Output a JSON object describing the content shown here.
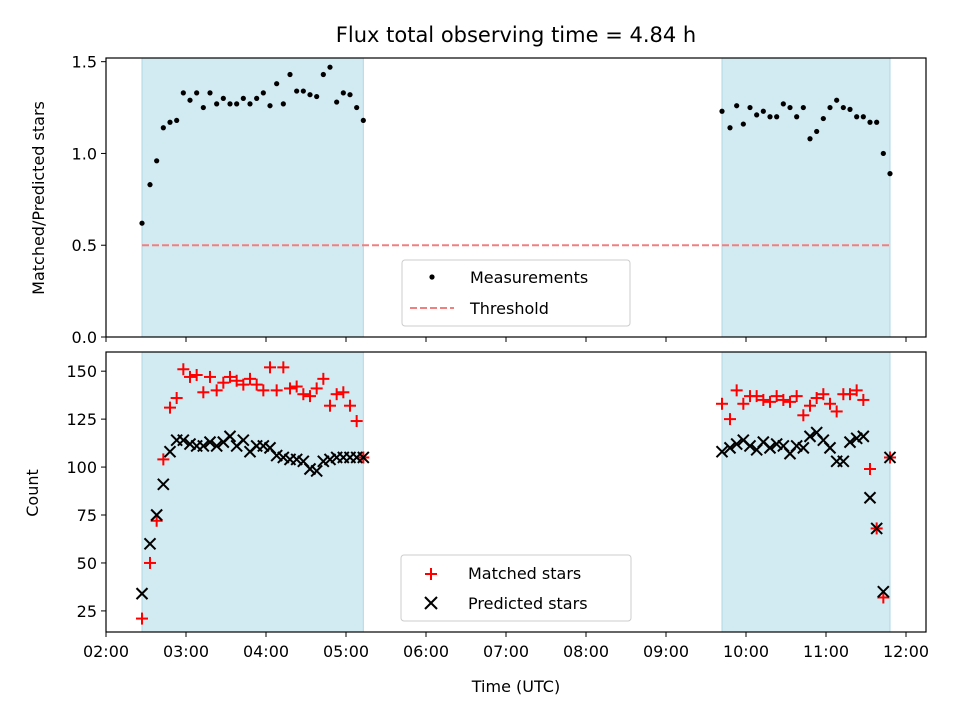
{
  "chart_data": [
    {
      "type": "scatter",
      "title": "Flux total observing time = 4.84 h",
      "xlabel": "",
      "ylabel": "Matched/Predicted stars",
      "ylim": [
        0,
        1.52
      ],
      "yticks": [
        "0.0",
        "0.5",
        "1.0",
        "1.5"
      ],
      "ytick_values": [
        0,
        0.5,
        1.0,
        1.5
      ],
      "xlim_hours": [
        2.0,
        12.25
      ],
      "xticks": [
        "02:00",
        "03:00",
        "04:00",
        "05:00",
        "06:00",
        "07:00",
        "08:00",
        "09:00",
        "10:00",
        "11:00",
        "12:00"
      ],
      "xtick_labels_shown": false,
      "shaded_spans": [
        {
          "start": "02:27",
          "end": "05:13",
          "color": "#add8e6"
        },
        {
          "start": "09:42",
          "end": "11:48",
          "color": "#add8e6"
        }
      ],
      "threshold": {
        "name": "Threshold",
        "value": 0.5,
        "x_start": "02:27",
        "x_end": "11:48",
        "color": "#f08080",
        "style": "dashed"
      },
      "series": [
        {
          "name": "Measurements",
          "color": "#000000",
          "marker": "dot",
          "x": [
            "02:27",
            "02:33",
            "02:38",
            "02:43",
            "02:48",
            "02:53",
            "02:58",
            "03:03",
            "03:08",
            "03:13",
            "03:18",
            "03:23",
            "03:28",
            "03:33",
            "03:38",
            "03:43",
            "03:48",
            "03:53",
            "03:58",
            "04:03",
            "04:08",
            "04:13",
            "04:18",
            "04:23",
            "04:28",
            "04:33",
            "04:38",
            "04:43",
            "04:48",
            "04:53",
            "04:58",
            "05:03",
            "05:08",
            "05:13",
            "09:42",
            "09:48",
            "09:53",
            "09:58",
            "10:03",
            "10:08",
            "10:13",
            "10:18",
            "10:23",
            "10:28",
            "10:33",
            "10:38",
            "10:43",
            "10:48",
            "10:53",
            "10:58",
            "11:03",
            "11:08",
            "11:13",
            "11:18",
            "11:23",
            "11:28",
            "11:33",
            "11:38",
            "11:43",
            "11:48"
          ],
          "y": [
            0.62,
            0.83,
            0.96,
            1.14,
            1.17,
            1.18,
            1.33,
            1.29,
            1.33,
            1.25,
            1.33,
            1.27,
            1.3,
            1.27,
            1.27,
            1.3,
            1.27,
            1.3,
            1.33,
            1.26,
            1.38,
            1.27,
            1.43,
            1.34,
            1.34,
            1.32,
            1.31,
            1.43,
            1.47,
            1.28,
            1.33,
            1.32,
            1.25,
            1.18,
            1.23,
            1.14,
            1.26,
            1.16,
            1.25,
            1.21,
            1.23,
            1.2,
            1.2,
            1.27,
            1.25,
            1.2,
            1.25,
            1.08,
            1.12,
            1.19,
            1.25,
            1.29,
            1.25,
            1.24,
            1.2,
            1.2,
            1.17,
            1.17,
            1.0,
            0.89
          ]
        }
      ],
      "legend": {
        "entries": [
          "Measurements",
          "Threshold"
        ],
        "placement": "lower center"
      }
    },
    {
      "type": "scatter",
      "title": "",
      "xlabel": "Time (UTC)",
      "ylabel": "Count",
      "ylim": [
        14,
        160
      ],
      "yticks": [
        "25",
        "50",
        "75",
        "100",
        "125",
        "150"
      ],
      "ytick_values": [
        25,
        50,
        75,
        100,
        125,
        150
      ],
      "xlim_hours": [
        2.0,
        12.25
      ],
      "xticks": [
        "02:00",
        "03:00",
        "04:00",
        "05:00",
        "06:00",
        "07:00",
        "08:00",
        "09:00",
        "10:00",
        "11:00",
        "12:00"
      ],
      "xtick_labels_shown": true,
      "shaded_spans": [
        {
          "start": "02:27",
          "end": "05:13",
          "color": "#add8e6"
        },
        {
          "start": "09:42",
          "end": "11:48",
          "color": "#add8e6"
        }
      ],
      "series": [
        {
          "name": "Matched stars",
          "color": "#ff0000",
          "marker": "plus",
          "x": [
            "02:27",
            "02:33",
            "02:38",
            "02:43",
            "02:48",
            "02:53",
            "02:58",
            "03:03",
            "03:08",
            "03:13",
            "03:18",
            "03:23",
            "03:28",
            "03:33",
            "03:38",
            "03:43",
            "03:48",
            "03:53",
            "03:58",
            "04:03",
            "04:08",
            "04:13",
            "04:18",
            "04:23",
            "04:28",
            "04:33",
            "04:38",
            "04:43",
            "04:48",
            "04:53",
            "04:58",
            "05:03",
            "05:08",
            "05:13",
            "09:42",
            "09:48",
            "09:53",
            "09:58",
            "10:03",
            "10:08",
            "10:13",
            "10:18",
            "10:23",
            "10:28",
            "10:33",
            "10:38",
            "10:43",
            "10:48",
            "10:53",
            "10:58",
            "11:03",
            "11:08",
            "11:13",
            "11:18",
            "11:23",
            "11:28",
            "11:33",
            "11:38",
            "11:43",
            "11:48"
          ],
          "y": [
            21,
            50,
            72,
            104,
            131,
            136,
            151,
            147,
            148,
            139,
            147,
            140,
            144,
            147,
            145,
            143,
            146,
            143,
            140,
            152,
            140,
            152,
            141,
            142,
            138,
            137,
            141,
            146,
            132,
            138,
            139,
            132,
            124,
            105,
            133,
            125,
            140,
            133,
            137,
            137,
            135,
            134,
            137,
            135,
            134,
            137,
            127,
            132,
            136,
            138,
            133,
            129,
            138,
            138,
            140,
            135,
            99,
            68,
            32,
            105
          ]
        },
        {
          "name": "Predicted stars",
          "color": "#000000",
          "marker": "x",
          "x": [
            "02:27",
            "02:33",
            "02:38",
            "02:43",
            "02:48",
            "02:53",
            "02:58",
            "03:03",
            "03:08",
            "03:13",
            "03:18",
            "03:23",
            "03:28",
            "03:33",
            "03:38",
            "03:43",
            "03:48",
            "03:53",
            "03:58",
            "04:03",
            "04:08",
            "04:13",
            "04:18",
            "04:23",
            "04:28",
            "04:33",
            "04:38",
            "04:43",
            "04:48",
            "04:53",
            "04:58",
            "05:03",
            "05:08",
            "05:13",
            "09:42",
            "09:48",
            "09:53",
            "09:58",
            "10:03",
            "10:08",
            "10:13",
            "10:18",
            "10:23",
            "10:28",
            "10:33",
            "10:38",
            "10:43",
            "10:48",
            "10:53",
            "10:58",
            "11:03",
            "11:08",
            "11:13",
            "11:18",
            "11:23",
            "11:28",
            "11:33",
            "11:38",
            "11:43",
            "11:48"
          ],
          "y": [
            34,
            60,
            75,
            91,
            108,
            114,
            114,
            112,
            111,
            111,
            113,
            111,
            113,
            116,
            111,
            114,
            108,
            111,
            111,
            110,
            106,
            105,
            104,
            104,
            103,
            99,
            98,
            103,
            104,
            105,
            105,
            105,
            105,
            105,
            108,
            110,
            112,
            114,
            111,
            109,
            113,
            110,
            112,
            111,
            107,
            111,
            110,
            116,
            118,
            114,
            110,
            103,
            103,
            113,
            115,
            116,
            84,
            68,
            35,
            105
          ]
        }
      ],
      "legend": {
        "entries": [
          "Matched stars",
          "Predicted stars"
        ],
        "placement": "lower center"
      }
    }
  ]
}
